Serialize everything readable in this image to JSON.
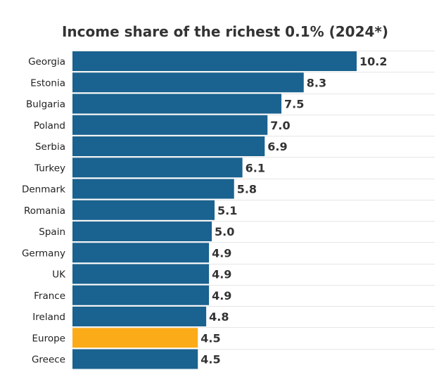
{
  "chart_data": {
    "type": "bar",
    "orientation": "horizontal",
    "title": "Income share of the richest 0.1% (2024*)",
    "xlabel": "",
    "ylabel": "",
    "categories": [
      "Georgia",
      "Estonia",
      "Bulgaria",
      "Poland",
      "Serbia",
      "Turkey",
      "Denmark",
      "Romania",
      "Spain",
      "Germany",
      "UK",
      "France",
      "Ireland",
      "Europe",
      "Greece"
    ],
    "values": [
      10.2,
      8.3,
      7.5,
      7.0,
      6.9,
      6.1,
      5.8,
      5.1,
      5.0,
      4.9,
      4.9,
      4.9,
      4.8,
      4.5,
      4.5
    ],
    "value_labels": [
      "10.2",
      "8.3",
      "7.5",
      "7.0",
      "6.9",
      "6.1",
      "5.8",
      "5.1",
      "5.0",
      "4.9",
      "4.9",
      "4.9",
      "4.8",
      "4.5",
      "4.5"
    ],
    "xlim": [
      0,
      10.2
    ],
    "grid": true,
    "legend": "none",
    "colors": {
      "default": "#1a628f",
      "highlight": "#fbab18",
      "highlight_category": "Europe"
    }
  }
}
